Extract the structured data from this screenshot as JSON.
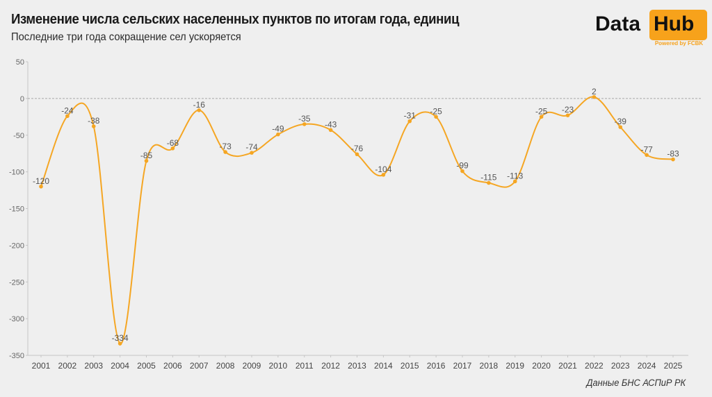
{
  "header": {
    "title": "Изменение числа сельских населенных пунктов по итогам года, единиц",
    "subtitle": "Последние три года сокращение сел ускоряется"
  },
  "logo": {
    "data_text": "Data",
    "hub_text": "Hub",
    "powered_text": "Powered by FCBK",
    "accent_color": "#f7a21b"
  },
  "footer": {
    "source": "Данные БНС АСПиР РК"
  },
  "chart_data": {
    "type": "line",
    "title": "Изменение числа сельских населенных пунктов по итогам года, единиц",
    "subtitle": "Последние три года сокращение сел ускоряется",
    "xlabel": "",
    "ylabel": "",
    "categories": [
      "2001",
      "2002",
      "2003",
      "2004",
      "2005",
      "2006",
      "2007",
      "2008",
      "2009",
      "2010",
      "2011",
      "2012",
      "2013",
      "2014",
      "2015",
      "2016",
      "2017",
      "2018",
      "2019",
      "2020",
      "2021",
      "2022",
      "2023",
      "2024",
      "2025"
    ],
    "series": [
      {
        "name": "Изменение числа сельских населенных пунктов",
        "color": "#f5a623",
        "values": [
          -120,
          -24,
          -38,
          -334,
          -85,
          -68,
          -16,
          -73,
          -74,
          -49,
          -35,
          -43,
          -76,
          -104,
          -31,
          -25,
          -99,
          -115,
          -113,
          -25,
          -23,
          2,
          -39,
          -77,
          -83
        ]
      }
    ],
    "ylim": [
      -350,
      50
    ],
    "yticks": [
      50,
      0,
      -50,
      -100,
      -150,
      -200,
      -250,
      -300,
      -350
    ],
    "grid": false,
    "zero_line": "dashed",
    "smooth": true,
    "data_labels": true,
    "legend": "none",
    "source": "Данные БНС АСПиР РК"
  }
}
